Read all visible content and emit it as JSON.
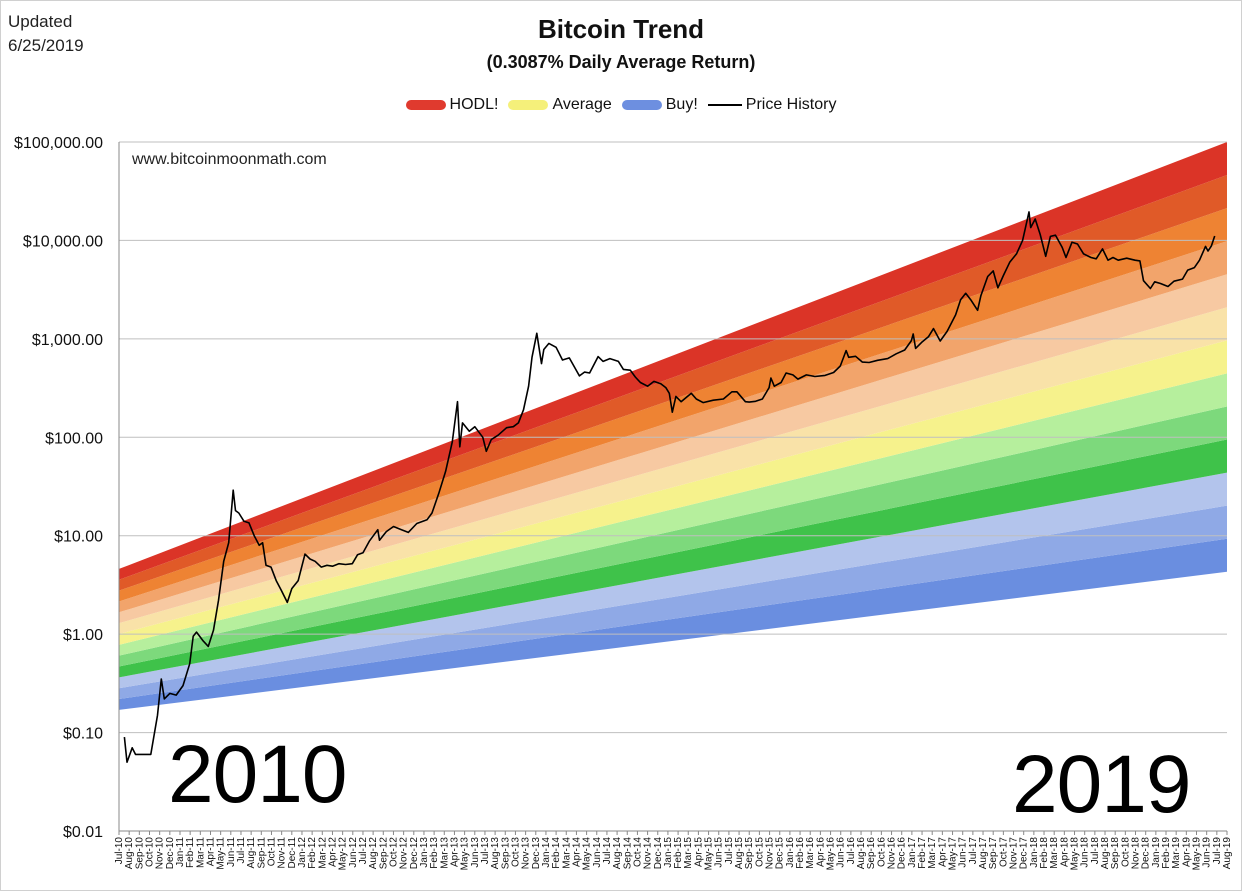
{
  "header": {
    "updated_label": "Updated",
    "updated_date": "6/25/2019",
    "title": "Bitcoin Trend",
    "subtitle": "(0.3087% Daily Average Return)"
  },
  "watermark": "www.bitcoinmoonmath.com",
  "overlay_years": {
    "left": "2010",
    "right": "2019"
  },
  "legend": [
    {
      "label": "HODL!",
      "color": "#e03a2e",
      "kind": "band"
    },
    {
      "label": "Average",
      "color": "#f5f07a",
      "kind": "band"
    },
    {
      "label": "Buy!",
      "color": "#6d8fe0",
      "kind": "band"
    },
    {
      "label": "Price History",
      "color": "#000000",
      "kind": "line"
    }
  ],
  "chart_data": {
    "type": "line",
    "yscale": "log",
    "ylim": [
      0.01,
      100000
    ],
    "yticks": [
      {
        "value": 0.01,
        "label": "$0.01"
      },
      {
        "value": 0.1,
        "label": "$0.10"
      },
      {
        "value": 1,
        "label": "$1.00"
      },
      {
        "value": 10,
        "label": "$10.00"
      },
      {
        "value": 100,
        "label": "$100.00"
      },
      {
        "value": 1000,
        "label": "$1,000.00"
      },
      {
        "value": 10000,
        "label": "$10,000.00"
      },
      {
        "value": 100000,
        "label": "$100,000.00"
      }
    ],
    "x_month_start": "2010-07",
    "x_month_end": "2019-08",
    "xtick_labels": [
      "Jul-10",
      "Aug-10",
      "Sep-10",
      "Oct-10",
      "Nov-10",
      "Dec-10",
      "Jan-11",
      "Feb-11",
      "Mar-11",
      "Apr-11",
      "May-11",
      "Jun-11",
      "Jul-11",
      "Aug-11",
      "Sep-11",
      "Oct-11",
      "Nov-11",
      "Dec-11",
      "Jan-12",
      "Feb-12",
      "Mar-12",
      "Apr-12",
      "May-12",
      "Jun-12",
      "Jul-12",
      "Aug-12",
      "Sep-12",
      "Oct-12",
      "Nov-12",
      "Dec-12",
      "Jan-13",
      "Feb-13",
      "Mar-13",
      "Apr-13",
      "May-13",
      "Jun-13",
      "Jul-13",
      "Aug-13",
      "Sep-13",
      "Oct-13",
      "Nov-13",
      "Dec-13",
      "Jan-14",
      "Feb-14",
      "Mar-14",
      "Apr-14",
      "May-14",
      "Jun-14",
      "Jul-14",
      "Aug-14",
      "Sep-14",
      "Oct-14",
      "Nov-14",
      "Dec-14",
      "Jan-15",
      "Feb-15",
      "Mar-15",
      "Apr-15",
      "May-15",
      "Jun-15",
      "Jul-15",
      "Aug-15",
      "Sep-15",
      "Oct-15",
      "Nov-15",
      "Dec-15",
      "Jan-16",
      "Feb-16",
      "Mar-16",
      "Apr-16",
      "May-16",
      "Jun-16",
      "Jul-16",
      "Aug-16",
      "Sep-16",
      "Oct-16",
      "Nov-16",
      "Dec-16",
      "Jan-17",
      "Feb-17",
      "Mar-17",
      "Apr-17",
      "May-17",
      "Jun-17",
      "Jul-17",
      "Aug-17",
      "Sep-17",
      "Oct-17",
      "Nov-17",
      "Dec-17",
      "Jan-18",
      "Feb-18",
      "Mar-18",
      "Apr-18",
      "May-18",
      "Jun-18",
      "Jul-18",
      "Aug-18",
      "Sep-18",
      "Oct-18",
      "Nov-18",
      "Dec-18",
      "Jan-19",
      "Feb-19",
      "Mar-19",
      "Apr-19",
      "May-19",
      "Jun-19",
      "Jul-19",
      "Aug-19"
    ],
    "bands": {
      "start_month": "2010-07",
      "end_month": "2019-08",
      "lower_start": 0.17,
      "lower_end": 4.3,
      "upper_start": 4.6,
      "upper_end": 100000,
      "colors": [
        "#6a8ee0",
        "#8fa9e6",
        "#b3c4ec",
        "#3fc24a",
        "#7dd97c",
        "#b6ef9d",
        "#f6f28c",
        "#f9e2a8",
        "#f7c9a2",
        "#f2a46b",
        "#ee8333",
        "#e05a28",
        "#db3427"
      ]
    },
    "price_series": [
      [
        "2010-07-17",
        0.09
      ],
      [
        "2010-07-25",
        0.05
      ],
      [
        "2010-08-10",
        0.07
      ],
      [
        "2010-08-20",
        0.06
      ],
      [
        "2010-09-15",
        0.06
      ],
      [
        "2010-10-05",
        0.06
      ],
      [
        "2010-10-25",
        0.15
      ],
      [
        "2010-11-06",
        0.35
      ],
      [
        "2010-11-15",
        0.22
      ],
      [
        "2010-12-01",
        0.25
      ],
      [
        "2010-12-20",
        0.24
      ],
      [
        "2011-01-10",
        0.3
      ],
      [
        "2011-01-30",
        0.5
      ],
      [
        "2011-02-10",
        0.95
      ],
      [
        "2011-02-20",
        1.05
      ],
      [
        "2011-03-10",
        0.85
      ],
      [
        "2011-03-25",
        0.75
      ],
      [
        "2011-04-10",
        1.1
      ],
      [
        "2011-04-25",
        2.2
      ],
      [
        "2011-05-10",
        5.5
      ],
      [
        "2011-05-25",
        8.5
      ],
      [
        "2011-06-08",
        29
      ],
      [
        "2011-06-15",
        18
      ],
      [
        "2011-06-25",
        17
      ],
      [
        "2011-07-10",
        14
      ],
      [
        "2011-07-25",
        13.5
      ],
      [
        "2011-08-10",
        10
      ],
      [
        "2011-08-25",
        8
      ],
      [
        "2011-09-05",
        8.5
      ],
      [
        "2011-09-15",
        5
      ],
      [
        "2011-09-30",
        4.8
      ],
      [
        "2011-10-15",
        3.5
      ],
      [
        "2011-10-30",
        2.8
      ],
      [
        "2011-11-18",
        2.1
      ],
      [
        "2011-12-01",
        2.9
      ],
      [
        "2011-12-20",
        3.5
      ],
      [
        "2012-01-10",
        6.5
      ],
      [
        "2012-01-25",
        5.8
      ],
      [
        "2012-02-10",
        5.5
      ],
      [
        "2012-02-28",
        4.8
      ],
      [
        "2012-03-15",
        5
      ],
      [
        "2012-04-01",
        4.9
      ],
      [
        "2012-04-20",
        5.2
      ],
      [
        "2012-05-10",
        5.1
      ],
      [
        "2012-05-30",
        5.2
      ],
      [
        "2012-06-15",
        6.4
      ],
      [
        "2012-07-01",
        6.7
      ],
      [
        "2012-07-20",
        8.8
      ],
      [
        "2012-08-15",
        11.5
      ],
      [
        "2012-08-20",
        9
      ],
      [
        "2012-09-10",
        11
      ],
      [
        "2012-10-01",
        12.4
      ],
      [
        "2012-10-25",
        11.5
      ],
      [
        "2012-11-15",
        10.8
      ],
      [
        "2012-12-10",
        13.3
      ],
      [
        "2013-01-10",
        14.5
      ],
      [
        "2013-01-25",
        17
      ],
      [
        "2013-02-15",
        27
      ],
      [
        "2013-03-05",
        45
      ],
      [
        "2013-03-25",
        90
      ],
      [
        "2013-04-10",
        230
      ],
      [
        "2013-04-17",
        80
      ],
      [
        "2013-04-25",
        140
      ],
      [
        "2013-05-15",
        115
      ],
      [
        "2013-06-01",
        128
      ],
      [
        "2013-06-25",
        100
      ],
      [
        "2013-07-05",
        72
      ],
      [
        "2013-07-20",
        95
      ],
      [
        "2013-08-10",
        105
      ],
      [
        "2013-09-05",
        125
      ],
      [
        "2013-09-25",
        128
      ],
      [
        "2013-10-10",
        140
      ],
      [
        "2013-10-25",
        190
      ],
      [
        "2013-11-10",
        330
      ],
      [
        "2013-11-20",
        650
      ],
      [
        "2013-12-04",
        1140
      ],
      [
        "2013-12-18",
        560
      ],
      [
        "2013-12-25",
        780
      ],
      [
        "2014-01-10",
        900
      ],
      [
        "2014-02-01",
        820
      ],
      [
        "2014-02-20",
        610
      ],
      [
        "2014-03-10",
        640
      ],
      [
        "2014-04-10",
        420
      ],
      [
        "2014-04-25",
        460
      ],
      [
        "2014-05-10",
        450
      ],
      [
        "2014-06-05",
        660
      ],
      [
        "2014-06-20",
        590
      ],
      [
        "2014-07-10",
        630
      ],
      [
        "2014-08-05",
        590
      ],
      [
        "2014-08-20",
        490
      ],
      [
        "2014-09-10",
        480
      ],
      [
        "2014-09-25",
        410
      ],
      [
        "2014-10-10",
        360
      ],
      [
        "2014-11-01",
        330
      ],
      [
        "2014-11-20",
        370
      ],
      [
        "2014-12-10",
        350
      ],
      [
        "2014-12-25",
        320
      ],
      [
        "2015-01-05",
        280
      ],
      [
        "2015-01-14",
        180
      ],
      [
        "2015-01-25",
        260
      ],
      [
        "2015-02-10",
        230
      ],
      [
        "2015-03-10",
        280
      ],
      [
        "2015-03-25",
        245
      ],
      [
        "2015-04-15",
        225
      ],
      [
        "2015-05-15",
        238
      ],
      [
        "2015-06-15",
        245
      ],
      [
        "2015-07-10",
        290
      ],
      [
        "2015-07-25",
        290
      ],
      [
        "2015-08-20",
        230
      ],
      [
        "2015-09-01",
        228
      ],
      [
        "2015-09-20",
        232
      ],
      [
        "2015-10-10",
        245
      ],
      [
        "2015-10-30",
        320
      ],
      [
        "2015-11-05",
        400
      ],
      [
        "2015-11-15",
        330
      ],
      [
        "2015-12-05",
        360
      ],
      [
        "2015-12-20",
        450
      ],
      [
        "2016-01-10",
        430
      ],
      [
        "2016-01-25",
        390
      ],
      [
        "2016-02-20",
        430
      ],
      [
        "2016-03-15",
        415
      ],
      [
        "2016-04-15",
        425
      ],
      [
        "2016-05-10",
        455
      ],
      [
        "2016-05-30",
        530
      ],
      [
        "2016-06-17",
        760
      ],
      [
        "2016-06-25",
        650
      ],
      [
        "2016-07-15",
        665
      ],
      [
        "2016-08-05",
        580
      ],
      [
        "2016-08-25",
        575
      ],
      [
        "2016-09-20",
        605
      ],
      [
        "2016-10-20",
        630
      ],
      [
        "2016-11-15",
        705
      ],
      [
        "2016-12-10",
        770
      ],
      [
        "2016-12-30",
        960
      ],
      [
        "2017-01-05",
        1120
      ],
      [
        "2017-01-12",
        800
      ],
      [
        "2017-01-30",
        920
      ],
      [
        "2017-02-20",
        1050
      ],
      [
        "2017-03-05",
        1270
      ],
      [
        "2017-03-25",
        950
      ],
      [
        "2017-04-15",
        1190
      ],
      [
        "2017-05-10",
        1750
      ],
      [
        "2017-05-25",
        2500
      ],
      [
        "2017-06-10",
        2900
      ],
      [
        "2017-06-25",
        2500
      ],
      [
        "2017-07-15",
        1950
      ],
      [
        "2017-07-25",
        2750
      ],
      [
        "2017-08-15",
        4300
      ],
      [
        "2017-09-01",
        4900
      ],
      [
        "2017-09-15",
        3300
      ],
      [
        "2017-10-01",
        4400
      ],
      [
        "2017-10-20",
        6000
      ],
      [
        "2017-11-10",
        7300
      ],
      [
        "2017-11-28",
        10000
      ],
      [
        "2017-12-17",
        19500
      ],
      [
        "2017-12-22",
        13500
      ],
      [
        "2018-01-05",
        16500
      ],
      [
        "2018-01-20",
        11500
      ],
      [
        "2018-02-06",
        6900
      ],
      [
        "2018-02-20",
        11000
      ],
      [
        "2018-03-05",
        11300
      ],
      [
        "2018-03-25",
        8500
      ],
      [
        "2018-04-06",
        6700
      ],
      [
        "2018-04-24",
        9600
      ],
      [
        "2018-05-10",
        9200
      ],
      [
        "2018-05-28",
        7300
      ],
      [
        "2018-06-20",
        6700
      ],
      [
        "2018-07-05",
        6500
      ],
      [
        "2018-07-24",
        8200
      ],
      [
        "2018-08-10",
        6300
      ],
      [
        "2018-08-25",
        6700
      ],
      [
        "2018-09-10",
        6300
      ],
      [
        "2018-10-05",
        6600
      ],
      [
        "2018-10-30",
        6300
      ],
      [
        "2018-11-14",
        6200
      ],
      [
        "2018-11-25",
        3900
      ],
      [
        "2018-12-15",
        3250
      ],
      [
        "2018-12-28",
        3800
      ],
      [
        "2019-01-15",
        3650
      ],
      [
        "2019-02-07",
        3400
      ],
      [
        "2019-02-25",
        3850
      ],
      [
        "2019-03-20",
        4050
      ],
      [
        "2019-04-05",
        5000
      ],
      [
        "2019-04-25",
        5300
      ],
      [
        "2019-05-10",
        6300
      ],
      [
        "2019-05-28",
        8700
      ],
      [
        "2019-06-05",
        7800
      ],
      [
        "2019-06-15",
        8800
      ],
      [
        "2019-06-25",
        11100
      ]
    ]
  }
}
